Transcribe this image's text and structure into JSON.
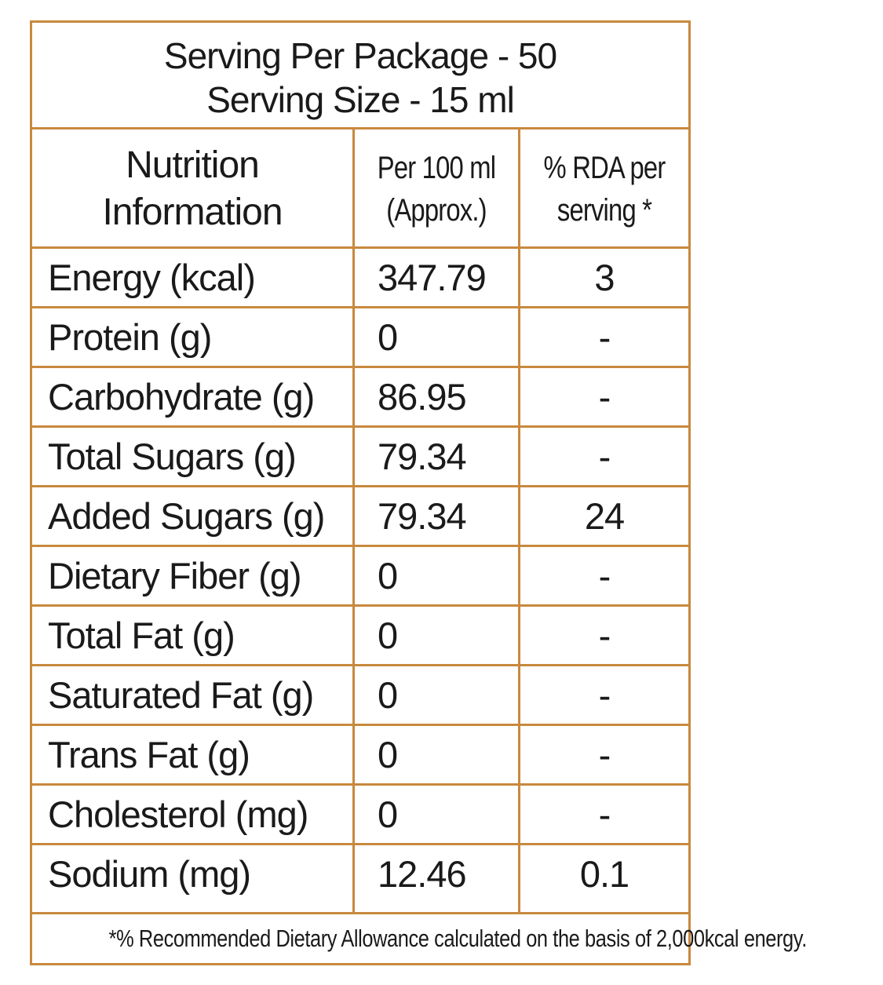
{
  "header": {
    "line1": "Serving Per Package - 50",
    "line2": "Serving Size - 15 ml"
  },
  "columns": {
    "nutrient_line1": "Nutrition",
    "nutrient_line2": "Information",
    "per100_line1": "Per 100 ml",
    "per100_line2": "(Approx.)",
    "rda_line1": "% RDA per",
    "rda_line2": "serving *"
  },
  "rows": [
    {
      "name": "Energy (kcal)",
      "value": "347.79",
      "rda": "3"
    },
    {
      "name": "Protein (g)",
      "value": "0",
      "rda": "-"
    },
    {
      "name": "Carbohydrate (g)",
      "value": "86.95",
      "rda": "-"
    },
    {
      "name": "Total Sugars (g)",
      "value": "79.34",
      "rda": "-"
    },
    {
      "name": "Added Sugars (g)",
      "value": "79.34",
      "rda": "24"
    },
    {
      "name": "Dietary Fiber (g)",
      "value": "0",
      "rda": "-"
    },
    {
      "name": "Total Fat (g)",
      "value": "0",
      "rda": "-"
    },
    {
      "name": "Saturated Fat (g)",
      "value": "0",
      "rda": "-"
    },
    {
      "name": "Trans Fat (g)",
      "value": "0",
      "rda": "-"
    },
    {
      "name": "Cholesterol (mg)",
      "value": "0",
      "rda": "-"
    },
    {
      "name": "Sodium (mg)",
      "value": "12.46",
      "rda": "0.1"
    }
  ],
  "footnote": "*% Recommended Dietary Allowance calculated on the basis of 2,000kcal energy.",
  "colors": {
    "border": "#c8893e",
    "text": "#1a1a1a"
  }
}
